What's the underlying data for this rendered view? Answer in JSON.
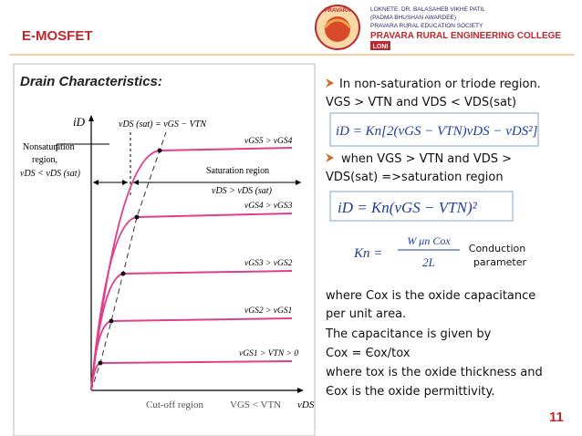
{
  "header": {
    "title": "E-MOSFET",
    "logo_emblem": "PRAVARA",
    "college_lines": [
      "LOKNETE. DR. BALASAHEB VIKHE PATIL",
      "(PADMA BHUSHAN AWARDEE)",
      "PRAVARA RURAL EDUCATION SOCIETY"
    ],
    "college_name": "PRAVARA RURAL ENGINEERING COLLEGE",
    "college_place": "LONI"
  },
  "figure": {
    "heading": "Drain Characteristics:",
    "y_axis_label": "iD",
    "x_axis_label": "vDS",
    "sat_boundary": "vDS (sat) = vGS − VTN",
    "nonsat_label": [
      "Nonsaturation",
      "region,",
      "vDS < vDS (sat)"
    ],
    "sat_label": [
      "Saturation region",
      "vDS > vDS (sat)"
    ],
    "curve_labels": [
      "vGS5 > vGS4",
      "vGS4 > vGS3",
      "vGS3 > vGS2",
      "vGS2 > vGS1",
      "vGS1 > VTN > 0"
    ],
    "cutoff_label": "Cut-off region",
    "cutoff_condition": "VGS < VTN"
  },
  "content": {
    "bullet_1": [
      "In non-saturation or triode region.",
      "VGS > VTN and VDS < VDS(sat)"
    ],
    "equation_1": "iD = Kn[2(vGS − VTN)vDS − vDS²]",
    "bullet_2": [
      "when VGS > VTN and VDS >",
      "VDS(sat) =>saturation region"
    ],
    "equation_2": "iD = Kn(vGS − VTN)²",
    "kn_lhs": "Kn =",
    "kn_numerator": "W μn Cox",
    "kn_denominator": "2L",
    "kn_note": [
      "Conduction",
      "parameter"
    ],
    "paragraph": [
      "where Cox is the oxide capacitance",
      "per unit area.",
      "The capacitance is given by",
      "Cox = Єox/tox",
      "where tox is the oxide thickness and",
      "Єox is the oxide permittivity."
    ]
  },
  "footer": {
    "page_number": "11"
  }
}
